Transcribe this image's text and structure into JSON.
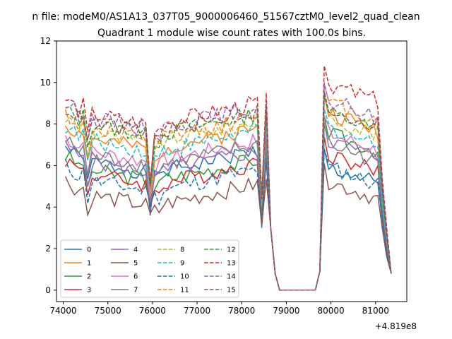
{
  "chart_data": {
    "type": "line",
    "suptitle": "n file: modeM0/AS1A13_037T05_9000006460_51567cztM0_level2_quad_clean",
    "title": "Quadrant 1 module wise count rates with 100.0s bins.",
    "x_offset_label": "+4.819e8",
    "xlim": [
      73850,
      81700
    ],
    "ylim": [
      -0.55,
      12.0
    ],
    "x_ticks": [
      74000,
      75000,
      76000,
      77000,
      78000,
      79000,
      80000,
      81000
    ],
    "x_tick_labels": [
      "74000",
      "75000",
      "76000",
      "77000",
      "78000",
      "79000",
      "80000",
      "81000"
    ],
    "y_ticks": [
      0,
      2,
      4,
      6,
      8,
      10,
      12
    ],
    "y_tick_labels": [
      "0",
      "2",
      "4",
      "6",
      "8",
      "10",
      "12"
    ],
    "legend_position": "lower-left",
    "x_start": 74050,
    "x_step": 100,
    "series": [
      {
        "name": "0",
        "color": "#1f77b4",
        "dash": "solid",
        "gap_level": 6.0,
        "dip": 2.8,
        "high2": 6.0,
        "seed": 1
      },
      {
        "name": "1",
        "color": "#ff7f0e",
        "dash": "solid",
        "gap_level": 7.1,
        "dip": 3.6,
        "high2": 8.6,
        "seed": 2
      },
      {
        "name": "2",
        "color": "#2ca02c",
        "dash": "solid",
        "gap_level": 5.6,
        "dip": 3.4,
        "high2": 7.6,
        "seed": 3
      },
      {
        "name": "3",
        "color": "#d62728",
        "dash": "solid",
        "gap_level": 5.4,
        "dip": 3.2,
        "high2": 6.6,
        "seed": 4
      },
      {
        "name": "4",
        "color": "#9467bd",
        "dash": "solid",
        "gap_level": 6.0,
        "dip": 3.5,
        "high2": 7.3,
        "seed": 5
      },
      {
        "name": "5",
        "color": "#8c564b",
        "dash": "solid",
        "gap_level": 4.4,
        "dip": 2.9,
        "high2": 5.3,
        "seed": 6
      },
      {
        "name": "6",
        "color": "#e377c2",
        "dash": "solid",
        "gap_level": 6.5,
        "dip": 3.7,
        "high2": 7.6,
        "seed": 7
      },
      {
        "name": "7",
        "color": "#7f7f7f",
        "dash": "solid",
        "gap_level": 6.3,
        "dip": 3.3,
        "high2": 7.1,
        "seed": 8
      },
      {
        "name": "8",
        "color": "#bcbd22",
        "dash": "dashed",
        "gap_level": 7.4,
        "dip": 3.9,
        "high2": 8.4,
        "seed": 9
      },
      {
        "name": "9",
        "color": "#17becf",
        "dash": "dashed",
        "gap_level": 7.0,
        "dip": 4.0,
        "high2": 7.9,
        "seed": 10
      },
      {
        "name": "10",
        "color": "#1f77b4",
        "dash": "dashed",
        "gap_level": 5.1,
        "dip": 3.3,
        "high2": 6.0,
        "seed": 11
      },
      {
        "name": "11",
        "color": "#ff7f0e",
        "dash": "dashed",
        "gap_level": 7.6,
        "dip": 4.1,
        "high2": 9.1,
        "seed": 12
      },
      {
        "name": "12",
        "color": "#2ca02c",
        "dash": "dashed",
        "gap_level": 7.8,
        "dip": 4.2,
        "high2": 8.6,
        "seed": 13
      },
      {
        "name": "13",
        "color": "#d62728",
        "dash": "dashed",
        "gap_level": 8.3,
        "dip": 4.4,
        "high2": 10.0,
        "seed": 14
      },
      {
        "name": "14",
        "color": "#9467bd",
        "dash": "dashed",
        "gap_level": 8.1,
        "dip": 4.3,
        "high2": 9.2,
        "seed": 15
      },
      {
        "name": "15",
        "color": "#8c564b",
        "dash": "dashed",
        "gap_level": 7.9,
        "dip": 4.2,
        "high2": 8.8,
        "seed": 16
      }
    ]
  }
}
